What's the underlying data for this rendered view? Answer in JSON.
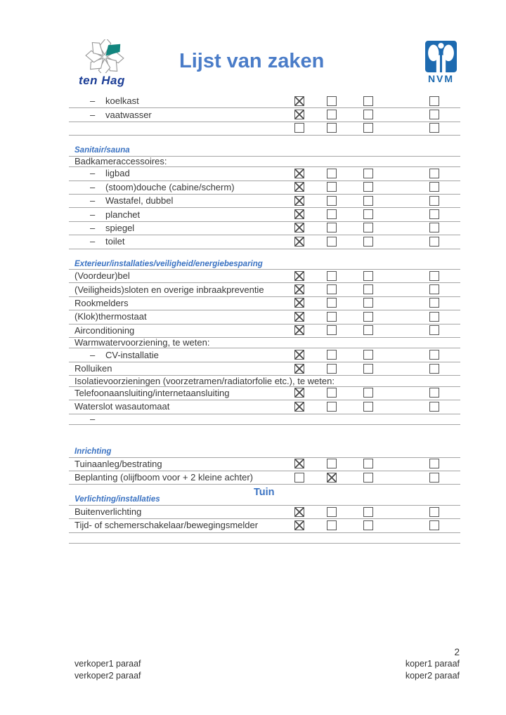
{
  "header": {
    "brand_logo": {
      "text": "ten Hag"
    },
    "title": "Lijst van zaken",
    "nvm_logo": {
      "text": "NVM"
    }
  },
  "glyphs": {
    "dash": "–"
  },
  "colors": {
    "title_blue": "#4a7cc8",
    "section_blue": "#3a72c2",
    "brand_blue": "#1c3e96",
    "brand_teal": "#12857e",
    "nvm_blue": "#1d6ab0",
    "line_gray": "#a5a5a5",
    "text_gray": "#383838"
  },
  "table": {
    "columns": 4,
    "rows": [
      {
        "type": "item",
        "indent": true,
        "label": "koelkast",
        "checks": [
          true,
          false,
          false,
          false
        ]
      },
      {
        "type": "item",
        "indent": true,
        "label": "vaatwasser",
        "checks": [
          true,
          false,
          false,
          false
        ]
      },
      {
        "type": "item",
        "indent": false,
        "label": "",
        "checks": [
          false,
          false,
          false,
          false
        ]
      },
      {
        "type": "spacer"
      },
      {
        "type": "section",
        "label": "Sanitair/sauna"
      },
      {
        "type": "item",
        "indent": false,
        "label": "Badkameraccessoires:",
        "checks": null
      },
      {
        "type": "item",
        "indent": true,
        "label": "ligbad",
        "checks": [
          true,
          false,
          false,
          false
        ]
      },
      {
        "type": "item",
        "indent": true,
        "label": "(stoom)douche (cabine/scherm)",
        "checks": [
          true,
          false,
          false,
          false
        ]
      },
      {
        "type": "item",
        "indent": true,
        "label": "Wastafel, dubbel",
        "checks": [
          true,
          false,
          false,
          false
        ]
      },
      {
        "type": "item",
        "indent": true,
        "label": "planchet",
        "checks": [
          true,
          false,
          false,
          false
        ]
      },
      {
        "type": "item",
        "indent": true,
        "label": "spiegel",
        "checks": [
          true,
          false,
          false,
          false
        ]
      },
      {
        "type": "item",
        "indent": true,
        "label": "toilet",
        "checks": [
          true,
          false,
          false,
          false
        ]
      },
      {
        "type": "spacer"
      },
      {
        "type": "section",
        "label": "Exterieur/installaties/veiligheid/energiebesparing"
      },
      {
        "type": "item",
        "indent": false,
        "label": "(Voordeur)bel",
        "checks": [
          true,
          false,
          false,
          false
        ]
      },
      {
        "type": "item",
        "indent": false,
        "label": "(Veiligheids)sloten en overige inbraakpreventie",
        "checks": [
          true,
          false,
          false,
          false
        ]
      },
      {
        "type": "item",
        "indent": false,
        "label": "Rookmelders",
        "checks": [
          true,
          false,
          false,
          false
        ]
      },
      {
        "type": "item",
        "indent": false,
        "label": "(Klok)thermostaat",
        "checks": [
          true,
          false,
          false,
          false
        ]
      },
      {
        "type": "item",
        "indent": false,
        "label": "Airconditioning",
        "checks": [
          true,
          false,
          false,
          false
        ]
      },
      {
        "type": "item",
        "indent": false,
        "label": "Warmwatervoorziening, te weten:",
        "checks": null
      },
      {
        "type": "item",
        "indent": true,
        "label": "CV-installatie",
        "checks": [
          true,
          false,
          false,
          false
        ]
      },
      {
        "type": "item",
        "indent": false,
        "label": "Rolluiken",
        "checks": [
          true,
          false,
          false,
          false
        ]
      },
      {
        "type": "item",
        "indent": false,
        "label": "Isolatievoorzieningen (voorzetramen/radiatorfolie etc.), te weten:",
        "checks": null
      },
      {
        "type": "item",
        "indent": false,
        "label": "Telefoonaansluiting/internetaansluiting",
        "checks": [
          true,
          false,
          false,
          false
        ]
      },
      {
        "type": "item",
        "indent": false,
        "label": "Waterslot wasautomaat",
        "checks": [
          true,
          false,
          false,
          false
        ]
      },
      {
        "type": "item",
        "indent": true,
        "label": "",
        "checks": null
      },
      {
        "type": "spacer"
      },
      {
        "type": "title",
        "label": "Tuin"
      },
      {
        "type": "section",
        "label": "Inrichting"
      },
      {
        "type": "item",
        "indent": false,
        "label": "Tuinaanleg/bestrating",
        "checks": [
          true,
          false,
          false,
          false
        ]
      },
      {
        "type": "item",
        "indent": false,
        "label": "Beplanting (olijfboom voor + 2 kleine achter)",
        "checks": [
          false,
          true,
          false,
          false
        ]
      },
      {
        "type": "spacer"
      },
      {
        "type": "section",
        "label": "Verlichting/installaties"
      },
      {
        "type": "item",
        "indent": false,
        "label": "Buitenverlichting",
        "checks": [
          true,
          false,
          false,
          false
        ]
      },
      {
        "type": "item",
        "indent": false,
        "label": "Tijd- of schemerschakelaar/bewegingsmelder",
        "checks": [
          true,
          false,
          false,
          false
        ]
      },
      {
        "type": "item",
        "indent": false,
        "label": "",
        "checks": null
      }
    ]
  },
  "footer": {
    "page_number": "2",
    "left": [
      "verkoper1 paraaf",
      "verkoper2 paraaf"
    ],
    "right": [
      "koper1 paraaf",
      "koper2 paraaf"
    ]
  }
}
